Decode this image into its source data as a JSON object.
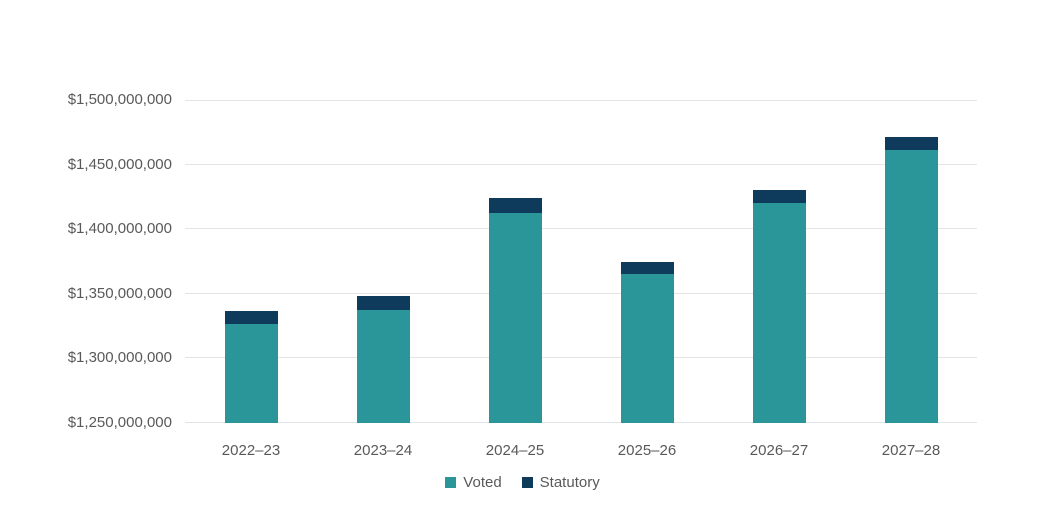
{
  "chart_data": {
    "type": "bar",
    "stacked": true,
    "categories": [
      "2022–23",
      "2023–24",
      "2024–25",
      "2025–26",
      "2026–27",
      "2027–28"
    ],
    "series": [
      {
        "name": "Voted",
        "color": "#2A9699",
        "values": [
          1327000000,
          1337500000,
          1412500000,
          1365000000,
          1420000000,
          1461000000
        ]
      },
      {
        "name": "Statutory",
        "color": "#0E3A5C",
        "values": [
          9500000,
          10500000,
          11500000,
          10000000,
          10500000,
          10000000
        ]
      }
    ],
    "totals": [
      1336500000,
      1348000000,
      1424000000,
      1375000000,
      1430500000,
      1471000000
    ],
    "y_axis": {
      "min": 1250000000,
      "max": 1500000000,
      "tick_step": 50000000,
      "tick_values": [
        1250000000,
        1300000000,
        1350000000,
        1400000000,
        1450000000,
        1500000000
      ],
      "tick_labels": [
        "$1,250,000,000",
        "$1,300,000,000",
        "$1,350,000,000",
        "$1,400,000,000",
        "$1,450,000,000",
        "$1,500,000,000"
      ]
    },
    "grid": true,
    "legend_position": "bottom",
    "colors": {
      "gridline": "#E2E5E5",
      "axis_text": "#595959",
      "legend_text": "#595959",
      "background": "#FFFFFF"
    }
  }
}
